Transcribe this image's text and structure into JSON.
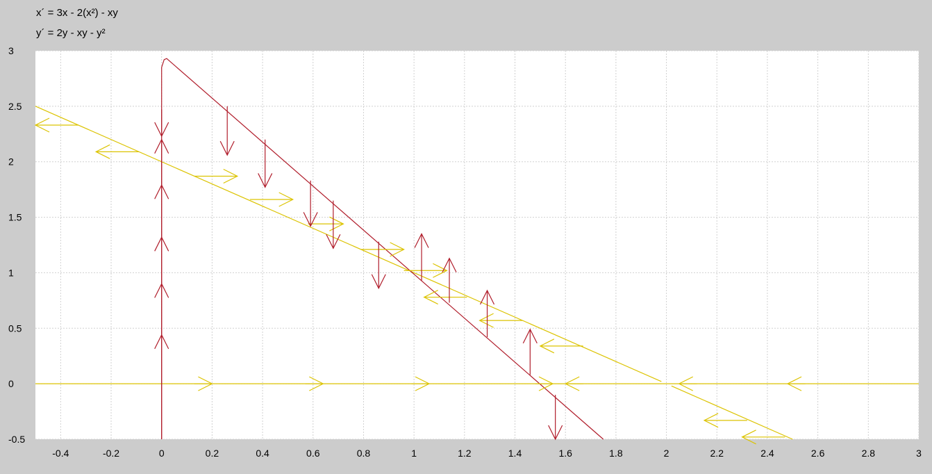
{
  "equations": {
    "x_prime": "x´ = 3x - 2(x²) - xy",
    "y_prime": "y´ = 2y - xy - y²"
  },
  "colors": {
    "background": "#cccccc",
    "plot_bg": "#ffffff",
    "grid": "#d0d0d0",
    "x_nullcline": "#dcc300",
    "y_nullcline": "#b01c2a"
  },
  "chart_data": {
    "type": "line",
    "title": "",
    "xlabel": "",
    "ylabel": "",
    "xlim": [
      -0.5,
      3
    ],
    "ylim": [
      -0.5,
      3
    ],
    "grid": true,
    "x_ticks": [
      "-0.4",
      "-0.2",
      "0",
      "0.2",
      "0.4",
      "0.6",
      "0.8",
      "1",
      "1.2",
      "1.4",
      "1.6",
      "1.8",
      "2",
      "2.2",
      "2.4",
      "2.6",
      "2.8",
      "3"
    ],
    "y_ticks": [
      "-0.5",
      "0",
      "0.5",
      "1",
      "1.5",
      "2",
      "2.5",
      "3"
    ],
    "series": [
      {
        "color": "#dcc300",
        "points": [
          [
            -0.5,
            0
          ],
          [
            3,
            0
          ]
        ]
      },
      {
        "color": "#dcc300",
        "points": [
          [
            -0.5,
            2.5
          ],
          [
            1.98,
            0.02
          ]
        ]
      },
      {
        "color": "#dcc300",
        "points": [
          [
            2.02,
            -0.02
          ],
          [
            2.5,
            -0.5
          ]
        ]
      },
      {
        "color": "#b01c2a",
        "points": [
          [
            0,
            -0.5
          ],
          [
            0,
            2.85
          ],
          [
            0.01,
            2.92
          ],
          [
            0.02,
            2.93
          ],
          [
            1.75,
            -0.5
          ]
        ]
      }
    ],
    "arrows": [
      {
        "color": "#dcc300",
        "x": [
          0.13,
          0.2
        ],
        "y": [
          0,
          0
        ],
        "dir": "right"
      },
      {
        "color": "#dcc300",
        "x": [
          0.57,
          0.64
        ],
        "y": [
          0,
          0
        ],
        "dir": "right"
      },
      {
        "color": "#dcc300",
        "x": [
          0.99,
          1.06
        ],
        "y": [
          0,
          0
        ],
        "dir": "right"
      },
      {
        "color": "#dcc300",
        "x": [
          1.48,
          1.55
        ],
        "y": [
          0,
          0
        ],
        "dir": "right"
      },
      {
        "color": "#dcc300",
        "x": [
          1.6,
          1.67
        ],
        "y": [
          0,
          0
        ],
        "dir": "left"
      },
      {
        "color": "#dcc300",
        "x": [
          2.05,
          2.12
        ],
        "y": [
          0,
          0
        ],
        "dir": "left"
      },
      {
        "color": "#dcc300",
        "x": [
          2.48,
          2.55
        ],
        "y": [
          0,
          0
        ],
        "dir": "left"
      },
      {
        "color": "#dcc300",
        "x": [
          -0.5,
          -0.33
        ],
        "y": [
          2.33,
          2.33
        ],
        "dir": "left"
      },
      {
        "color": "#dcc300",
        "x": [
          -0.26,
          -0.09
        ],
        "y": [
          2.09,
          2.09
        ],
        "dir": "left"
      },
      {
        "color": "#dcc300",
        "x": [
          0.13,
          0.3
        ],
        "y": [
          1.87,
          1.87
        ],
        "dir": "right"
      },
      {
        "color": "#dcc300",
        "x": [
          0.35,
          0.52
        ],
        "y": [
          1.66,
          1.66
        ],
        "dir": "right"
      },
      {
        "color": "#dcc300",
        "x": [
          0.58,
          0.72
        ],
        "y": [
          1.44,
          1.44
        ],
        "dir": "right"
      },
      {
        "color": "#dcc300",
        "x": [
          0.79,
          0.96
        ],
        "y": [
          1.21,
          1.21
        ],
        "dir": "right"
      },
      {
        "color": "#dcc300",
        "x": [
          0.96,
          1.13
        ],
        "y": [
          1.02,
          1.02
        ],
        "dir": "right"
      },
      {
        "color": "#dcc300",
        "x": [
          1.04,
          1.21
        ],
        "y": [
          0.78,
          0.78
        ],
        "dir": "left"
      },
      {
        "color": "#dcc300",
        "x": [
          1.26,
          1.43
        ],
        "y": [
          0.57,
          0.57
        ],
        "dir": "left"
      },
      {
        "color": "#dcc300",
        "x": [
          1.5,
          1.67
        ],
        "y": [
          0.34,
          0.34
        ],
        "dir": "left"
      },
      {
        "color": "#dcc300",
        "x": [
          2.15,
          2.32
        ],
        "y": [
          -0.33,
          -0.33
        ],
        "dir": "left"
      },
      {
        "color": "#dcc300",
        "x": [
          2.3,
          2.47
        ],
        "y": [
          -0.48,
          -0.48
        ],
        "dir": "left"
      },
      {
        "color": "#b01c2a",
        "x": [
          0,
          0
        ],
        "y": [
          -0.5,
          0.44
        ],
        "dir": "up"
      },
      {
        "color": "#b01c2a",
        "x": [
          0,
          0
        ],
        "y": [
          0.44,
          0.9
        ],
        "dir": "up"
      },
      {
        "color": "#b01c2a",
        "x": [
          0,
          0
        ],
        "y": [
          0.9,
          1.32
        ],
        "dir": "up"
      },
      {
        "color": "#b01c2a",
        "x": [
          0,
          0
        ],
        "y": [
          1.32,
          1.79
        ],
        "dir": "up"
      },
      {
        "color": "#b01c2a",
        "x": [
          0,
          0
        ],
        "y": [
          1.79,
          2.2
        ],
        "dir": "up"
      },
      {
        "color": "#b01c2a",
        "x": [
          0,
          0
        ],
        "y": [
          2.23,
          2.47
        ],
        "dir": "down"
      },
      {
        "color": "#b01c2a",
        "x": [
          0.26,
          0.26
        ],
        "y": [
          2.5,
          2.06
        ],
        "dir": "down"
      },
      {
        "color": "#b01c2a",
        "x": [
          0.41,
          0.41
        ],
        "y": [
          2.2,
          1.77
        ],
        "dir": "down"
      },
      {
        "color": "#b01c2a",
        "x": [
          0.59,
          0.59
        ],
        "y": [
          1.83,
          1.42
        ],
        "dir": "down"
      },
      {
        "color": "#b01c2a",
        "x": [
          0.68,
          0.68
        ],
        "y": [
          1.65,
          1.22
        ],
        "dir": "down"
      },
      {
        "color": "#b01c2a",
        "x": [
          0.86,
          0.86
        ],
        "y": [
          1.28,
          0.86
        ],
        "dir": "down"
      },
      {
        "color": "#b01c2a",
        "x": [
          1.03,
          1.03
        ],
        "y": [
          0.93,
          1.35
        ],
        "dir": "up"
      },
      {
        "color": "#b01c2a",
        "x": [
          1.14,
          1.14
        ],
        "y": [
          0.73,
          1.13
        ],
        "dir": "up"
      },
      {
        "color": "#b01c2a",
        "x": [
          1.29,
          1.29
        ],
        "y": [
          0.42,
          0.84
        ],
        "dir": "up"
      },
      {
        "color": "#b01c2a",
        "x": [
          1.46,
          1.46
        ],
        "y": [
          0.08,
          0.49
        ],
        "dir": "up"
      },
      {
        "color": "#b01c2a",
        "x": [
          1.56,
          1.56
        ],
        "y": [
          -0.1,
          -0.5
        ],
        "dir": "down"
      }
    ]
  }
}
